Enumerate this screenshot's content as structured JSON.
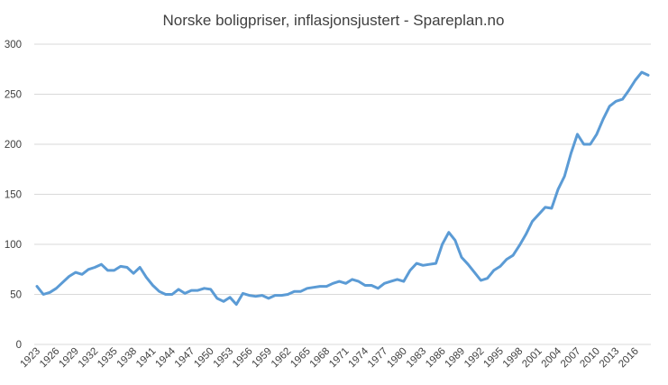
{
  "chart_data": {
    "type": "line",
    "title": "Norske boligpriser, inflasjonsjustert - Spareplan.no",
    "xlabel": "",
    "ylabel": "",
    "ylim": [
      0,
      300
    ],
    "yticks": [
      0,
      50,
      100,
      150,
      200,
      250,
      300
    ],
    "grid": "horizontal",
    "legend": "none",
    "x": [
      1923,
      1924,
      1925,
      1926,
      1927,
      1928,
      1929,
      1930,
      1931,
      1932,
      1933,
      1934,
      1935,
      1936,
      1937,
      1938,
      1939,
      1940,
      1941,
      1942,
      1943,
      1944,
      1945,
      1946,
      1947,
      1948,
      1949,
      1950,
      1951,
      1952,
      1953,
      1954,
      1955,
      1956,
      1957,
      1958,
      1959,
      1960,
      1961,
      1962,
      1963,
      1964,
      1965,
      1966,
      1967,
      1968,
      1969,
      1970,
      1971,
      1972,
      1973,
      1974,
      1975,
      1976,
      1977,
      1978,
      1979,
      1980,
      1981,
      1982,
      1983,
      1984,
      1985,
      1986,
      1987,
      1988,
      1989,
      1990,
      1991,
      1992,
      1993,
      1994,
      1995,
      1996,
      1997,
      1998,
      1999,
      2000,
      2001,
      2002,
      2003,
      2004,
      2005,
      2006,
      2007,
      2008,
      2009,
      2010,
      2011,
      2012,
      2013,
      2014,
      2015,
      2016,
      2017,
      2018
    ],
    "xticklabels": [
      "1923",
      "1926",
      "1929",
      "1932",
      "1935",
      "1938",
      "1941",
      "1944",
      "1947",
      "1950",
      "1953",
      "1956",
      "1959",
      "1962",
      "1965",
      "1968",
      "1971",
      "1974",
      "1977",
      "1980",
      "1983",
      "1986",
      "1989",
      "1992",
      "1995",
      "1998",
      "2001",
      "2004",
      "2007",
      "2010",
      "2013",
      "2016"
    ],
    "series": [
      {
        "color": "#5b9bd5",
        "values": [
          58,
          50,
          52,
          56,
          62,
          68,
          72,
          70,
          75,
          77,
          80,
          74,
          74,
          78,
          77,
          71,
          77,
          67,
          59,
          53,
          50,
          50,
          55,
          51,
          54,
          54,
          56,
          55,
          46,
          43,
          47,
          40,
          51,
          49,
          48,
          49,
          46,
          49,
          49,
          50,
          53,
          53,
          56,
          57,
          58,
          58,
          61,
          63,
          61,
          65,
          63,
          59,
          59,
          56,
          61,
          63,
          65,
          63,
          74,
          81,
          79,
          80,
          81,
          100,
          112,
          104,
          87,
          80,
          72,
          64,
          66,
          74,
          78,
          85,
          89,
          99,
          110,
          123,
          130,
          137,
          136,
          155,
          168,
          191,
          210,
          200,
          200,
          210,
          225,
          238,
          243,
          245,
          254,
          264,
          272,
          269
        ]
      }
    ]
  }
}
